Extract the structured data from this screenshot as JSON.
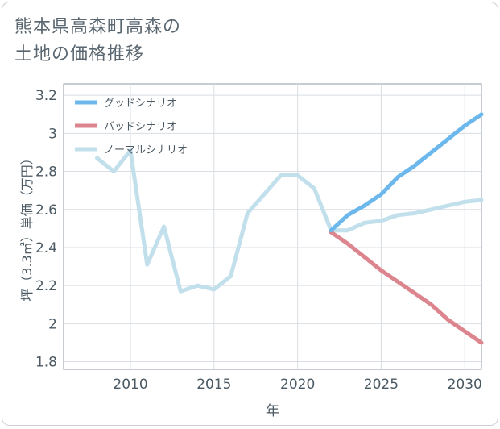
{
  "title_line1": "熊本県高森町高森の",
  "title_line2": "土地の価格推移",
  "chart_data": {
    "type": "line",
    "title": "熊本県高森町高森の土地の価格推移",
    "xlabel": "年",
    "ylabel": "坪（3.3㎡）単価（万円）",
    "xlim": [
      2006,
      2031
    ],
    "ylim": [
      1.76,
      3.26
    ],
    "xticks": [
      2010,
      2015,
      2020,
      2025,
      2030
    ],
    "yticks": [
      1.8,
      2,
      2.2,
      2.4,
      2.6,
      2.8,
      3,
      3.2
    ],
    "ytick_labels": [
      "1.8",
      "2",
      "2.2",
      "2.4",
      "2.6",
      "2.8",
      "3",
      "3.2"
    ],
    "xtick_labels": [
      "2010",
      "2015",
      "2020",
      "2025",
      "2030"
    ],
    "grid": true,
    "legend_position": "top-left",
    "series": [
      {
        "name": "グッドシナリオ",
        "color": "#6cb8ec",
        "x": [
          2022,
          2023,
          2024,
          2025,
          2026,
          2027,
          2028,
          2029,
          2030,
          2031
        ],
        "y": [
          2.49,
          2.57,
          2.62,
          2.68,
          2.77,
          2.83,
          2.9,
          2.97,
          3.04,
          3.1
        ]
      },
      {
        "name": "バッドシナリオ",
        "color": "#dc858e",
        "x": [
          2022,
          2023,
          2024,
          2025,
          2026,
          2027,
          2028,
          2029,
          2030,
          2031
        ],
        "y": [
          2.48,
          2.42,
          2.35,
          2.28,
          2.22,
          2.16,
          2.1,
          2.02,
          1.96,
          1.9
        ]
      },
      {
        "name": "ノーマルシナリオ",
        "color": "#c2dfec",
        "x": [
          2008,
          2009,
          2010,
          2011,
          2012,
          2013,
          2014,
          2015,
          2016,
          2017,
          2018,
          2019,
          2020,
          2021,
          2022,
          2023,
          2024,
          2025,
          2026,
          2027,
          2028,
          2029,
          2030,
          2031
        ],
        "y": [
          2.87,
          2.8,
          2.91,
          2.31,
          2.51,
          2.17,
          2.2,
          2.18,
          2.25,
          2.58,
          2.68,
          2.78,
          2.78,
          2.71,
          2.49,
          2.49,
          2.53,
          2.54,
          2.57,
          2.58,
          2.6,
          2.62,
          2.64,
          2.65
        ]
      }
    ]
  }
}
